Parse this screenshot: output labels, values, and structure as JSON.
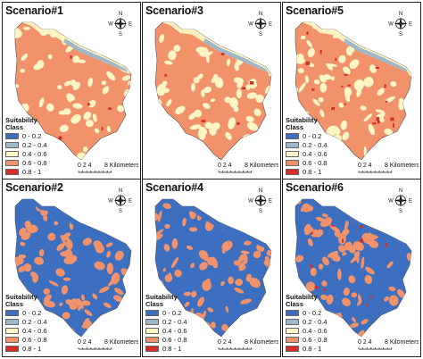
{
  "legend": {
    "title_line1": "Suitability",
    "title_line2": "Class",
    "classes": [
      {
        "label": "0 - 0.2",
        "color": "#3c6fc0"
      },
      {
        "label": "0.2 - 0.4",
        "color": "#9fb8c9"
      },
      {
        "label": "0.4 - 0.6",
        "color": "#fdf6c4"
      },
      {
        "label": "0.6 - 0.8",
        "color": "#f2926b"
      },
      {
        "label": "0.8 - 1",
        "color": "#d62b26"
      }
    ]
  },
  "compass": {
    "n": "N",
    "s": "S",
    "e": "E",
    "w": "W"
  },
  "scale": {
    "ticks": "0  2  4",
    "label": "8 Kilometers"
  },
  "panels": [
    {
      "title": "Scenario#1",
      "base": "orange",
      "speckle": "cream",
      "hot": "few"
    },
    {
      "title": "Scenario#3",
      "base": "orange",
      "speckle": "cream",
      "hot": "few"
    },
    {
      "title": "Scenario#5",
      "base": "orange",
      "speckle": "cream",
      "hot": "many"
    },
    {
      "title": "Scenario#2",
      "base": "blue",
      "speckle": "orange",
      "hot": "none"
    },
    {
      "title": "Scenario#4",
      "base": "blue",
      "speckle": "orange",
      "hot": "none"
    },
    {
      "title": "Scenario#6",
      "base": "blue",
      "speckle": "orange",
      "hot": "some"
    }
  ]
}
